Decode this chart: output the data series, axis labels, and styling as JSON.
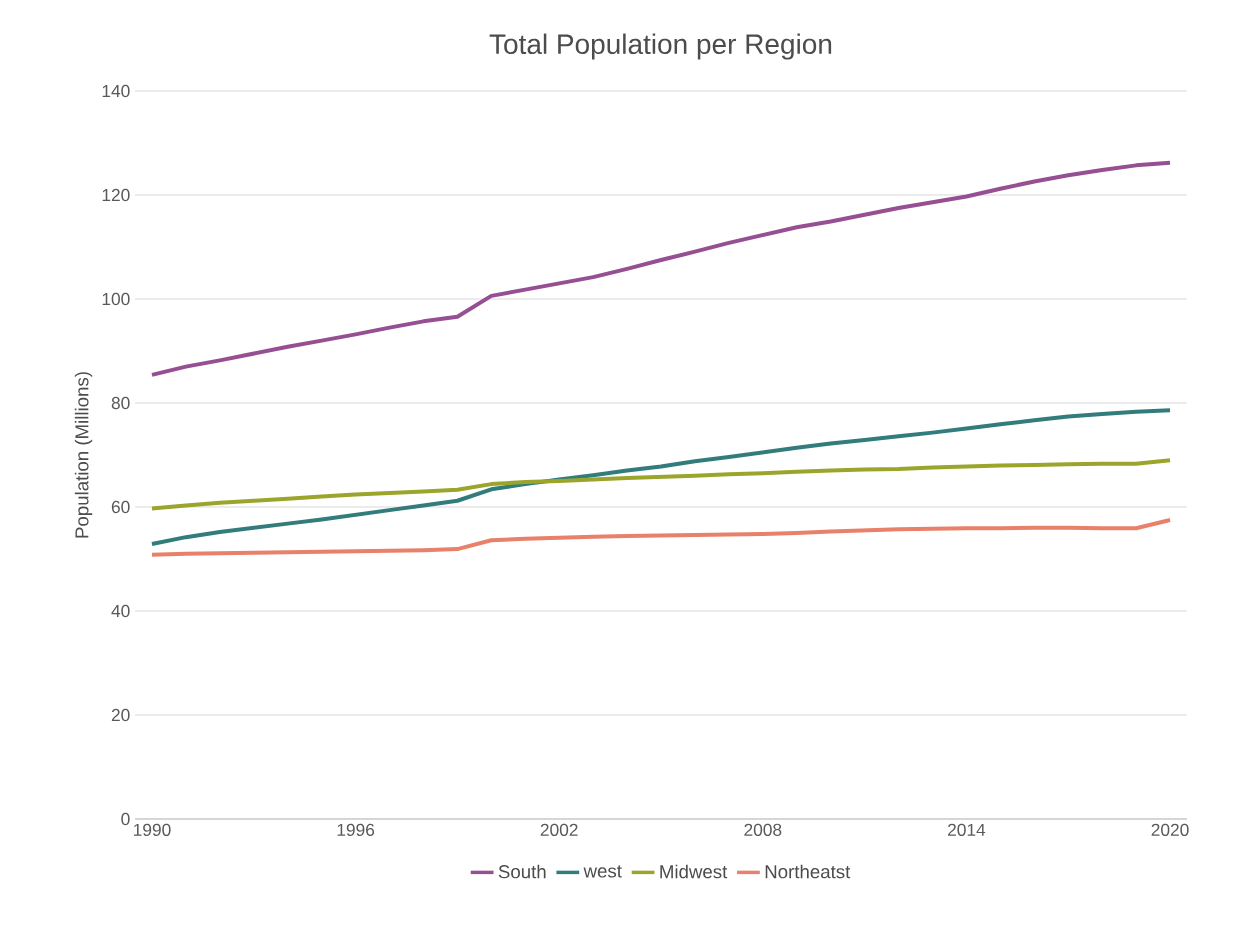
{
  "chart_data": {
    "type": "line",
    "title": "Total Population per Region",
    "ylabel": "Population (Millions)",
    "categories": [
      "1990",
      null,
      null,
      null,
      null,
      null,
      "1996",
      null,
      null,
      null,
      null,
      null,
      "2002",
      null,
      null,
      null,
      null,
      null,
      "2008",
      null,
      null,
      null,
      null,
      null,
      "2014",
      null,
      null,
      null,
      null,
      null,
      "2020"
    ],
    "series": [
      {
        "name": "South",
        "color": "#954f92",
        "values": [
          85.4,
          87.0,
          88.2,
          89.5,
          90.8,
          92.0,
          93.2,
          94.5,
          95.7,
          96.6,
          100.6,
          101.8,
          103.0,
          104.2,
          105.8,
          107.5,
          109.1,
          110.8,
          112.3,
          113.8,
          114.9,
          116.2,
          117.5,
          118.6,
          119.7,
          121.2,
          122.6,
          123.8,
          124.8,
          125.7,
          126.2
        ]
      },
      {
        "name": "west",
        "color": "#327c7c",
        "values": [
          52.9,
          54.2,
          55.2,
          56.0,
          56.8,
          57.6,
          58.5,
          59.4,
          60.3,
          61.2,
          63.4,
          64.4,
          65.3,
          66.1,
          67.0,
          67.8,
          68.8,
          69.6,
          70.5,
          71.4,
          72.2,
          72.9,
          73.6,
          74.3,
          75.1,
          75.9,
          76.7,
          77.4,
          77.9,
          78.3,
          78.6
        ]
      },
      {
        "name": "Midwest",
        "color": "#9ba52c",
        "values": [
          59.7,
          60.3,
          60.8,
          61.2,
          61.6,
          62.0,
          62.4,
          62.7,
          63.0,
          63.3,
          64.4,
          64.8,
          65.0,
          65.3,
          65.6,
          65.8,
          66.0,
          66.3,
          66.5,
          66.8,
          67.0,
          67.2,
          67.3,
          67.6,
          67.8,
          68.0,
          68.1,
          68.2,
          68.3,
          68.3,
          69.0
        ]
      },
      {
        "name": "Northeatst",
        "color": "#e8806a",
        "values": [
          50.8,
          51.0,
          51.1,
          51.2,
          51.3,
          51.4,
          51.5,
          51.6,
          51.7,
          51.9,
          53.6,
          53.9,
          54.1,
          54.3,
          54.4,
          54.5,
          54.6,
          54.7,
          54.8,
          55.0,
          55.3,
          55.5,
          55.7,
          55.8,
          55.9,
          55.9,
          56.0,
          56.0,
          55.9,
          55.9,
          57.5
        ]
      }
    ],
    "ylim": [
      0,
      140
    ],
    "yticks": [
      0,
      20,
      40,
      60,
      80,
      100,
      120,
      140
    ],
    "grid": "y",
    "legend": "bottom",
    "marker": "none",
    "line_style": "solid"
  }
}
